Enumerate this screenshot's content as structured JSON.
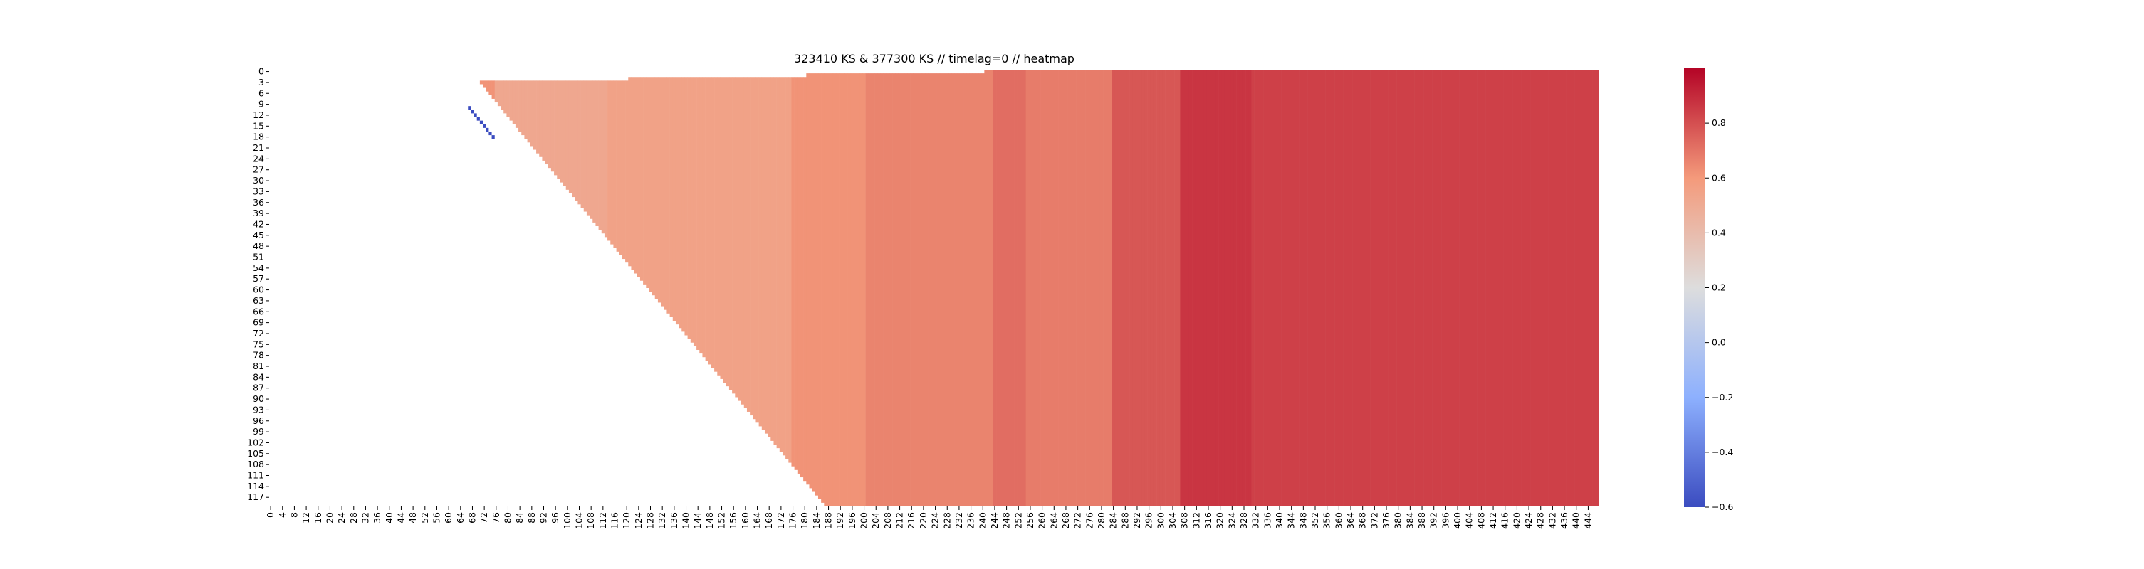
{
  "chart_data": {
    "type": "heatmap",
    "title": "323410 KS & 377300 KS // timelag=0 // heatmap",
    "xlabel": "",
    "ylabel": "",
    "x_range": [
      0,
      447
    ],
    "y_range": [
      0,
      119
    ],
    "x_tick_step": 4,
    "y_tick_step": 3,
    "x_ticks": [
      "0",
      "4",
      "8",
      "12",
      "16",
      "20",
      "24",
      "28",
      "32",
      "36",
      "40",
      "44",
      "48",
      "52",
      "56",
      "60",
      "64",
      "68",
      "72",
      "76",
      "80",
      "84",
      "88",
      "92",
      "96",
      "100",
      "104",
      "108",
      "112",
      "116",
      "120",
      "124",
      "128",
      "132",
      "136",
      "140",
      "144",
      "148",
      "152",
      "156",
      "160",
      "164",
      "168",
      "172",
      "176",
      "180",
      "184",
      "188",
      "192",
      "196",
      "200",
      "204",
      "208",
      "212",
      "216",
      "220",
      "224",
      "228",
      "232",
      "236",
      "240",
      "244",
      "248",
      "252",
      "256",
      "260",
      "264",
      "268",
      "272",
      "276",
      "280",
      "284",
      "288",
      "292",
      "296",
      "300",
      "304",
      "308",
      "312",
      "316",
      "320",
      "324",
      "328",
      "332",
      "336",
      "340",
      "344",
      "348",
      "352",
      "356",
      "360",
      "364",
      "368",
      "372",
      "376",
      "380",
      "384",
      "388",
      "392",
      "396",
      "400",
      "404",
      "408",
      "412",
      "416",
      "420",
      "424",
      "428",
      "432",
      "436",
      "440",
      "444"
    ],
    "y_ticks": [
      "0",
      "3",
      "6",
      "9",
      "12",
      "15",
      "18",
      "21",
      "24",
      "27",
      "30",
      "33",
      "36",
      "39",
      "42",
      "45",
      "48",
      "51",
      "54",
      "57",
      "60",
      "63",
      "66",
      "69",
      "72",
      "75",
      "78",
      "81",
      "84",
      "87",
      "90",
      "93",
      "96",
      "99",
      "102",
      "105",
      "108",
      "111",
      "114",
      "117"
    ],
    "colormap": "coolwarm",
    "colorbar": {
      "min": -0.6,
      "max": 1.0,
      "ticks": [
        "0.8",
        "0.6",
        "0.4",
        "0.2",
        "0.0",
        "−0.2",
        "−0.4",
        "−0.6"
      ]
    },
    "cells_lower_left_empty": true,
    "column_bands": [
      {
        "x": [
          64,
          75
        ],
        "value": 0.62
      },
      {
        "x": [
          76,
          113
        ],
        "value": 0.52
      },
      {
        "x": [
          114,
          175
        ],
        "value": 0.55
      },
      {
        "x": [
          176,
          200
        ],
        "value": 0.62
      },
      {
        "x": [
          201,
          243
        ],
        "value": 0.66
      },
      {
        "x": [
          244,
          254
        ],
        "value": 0.72
      },
      {
        "x": [
          255,
          283
        ],
        "value": 0.68
      },
      {
        "x": [
          284,
          306
        ],
        "value": 0.78
      },
      {
        "x": [
          307,
          330
        ],
        "value": 0.87
      },
      {
        "x": [
          331,
          447
        ],
        "value": 0.84
      }
    ],
    "negative_cells_near": {
      "x": [
        67,
        75
      ],
      "y": [
        10,
        17
      ],
      "value": -0.6
    }
  }
}
